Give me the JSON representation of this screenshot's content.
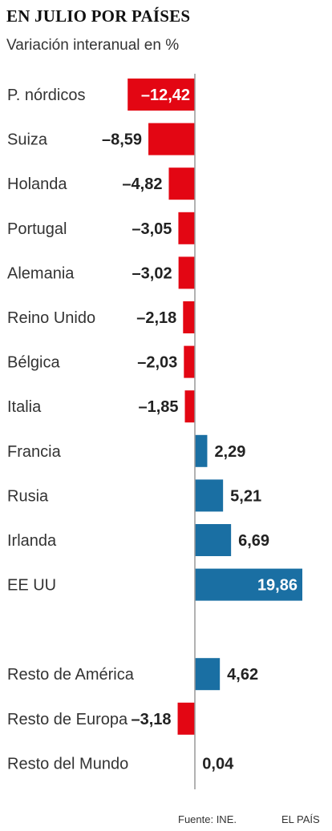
{
  "title": "EN JULIO POR PAÍSES",
  "subtitle": "Variación interanual en %",
  "source": "Fuente: INE.",
  "brand": "EL PAÍS",
  "colors": {
    "negative": "#e30613",
    "positive": "#1a6fa3",
    "axis": "#999999",
    "text": "#333333"
  },
  "chart_data": {
    "type": "bar",
    "orientation": "horizontal",
    "title": "EN JULIO POR PAÍSES",
    "subtitle": "Variación interanual en %",
    "categories": [
      "P. nórdicos",
      "Suiza",
      "Holanda",
      "Portugal",
      "Alemania",
      "Reino Unido",
      "Bélgica",
      "Italia",
      "Francia",
      "Rusia",
      "Irlanda",
      "EE UU",
      "Resto de América",
      "Resto de Europa",
      "Resto del Mundo"
    ],
    "values": [
      -12.42,
      -8.59,
      -4.82,
      -3.05,
      -3.02,
      -2.18,
      -2.03,
      -1.85,
      2.29,
      5.21,
      6.69,
      19.86,
      4.62,
      -3.18,
      0.04
    ],
    "value_labels": [
      "–12,42",
      "–8,59",
      "–4,82",
      "–3,05",
      "–3,02",
      "–2,18",
      "–2,03",
      "–1,85",
      "2,29",
      "5,21",
      "6,69",
      "19,86",
      "4,62",
      "–3,18",
      "0,04"
    ],
    "groups": [
      [
        0,
        11
      ],
      [
        12,
        14
      ]
    ],
    "xlim": [
      -12.42,
      19.86
    ],
    "grid": false
  }
}
